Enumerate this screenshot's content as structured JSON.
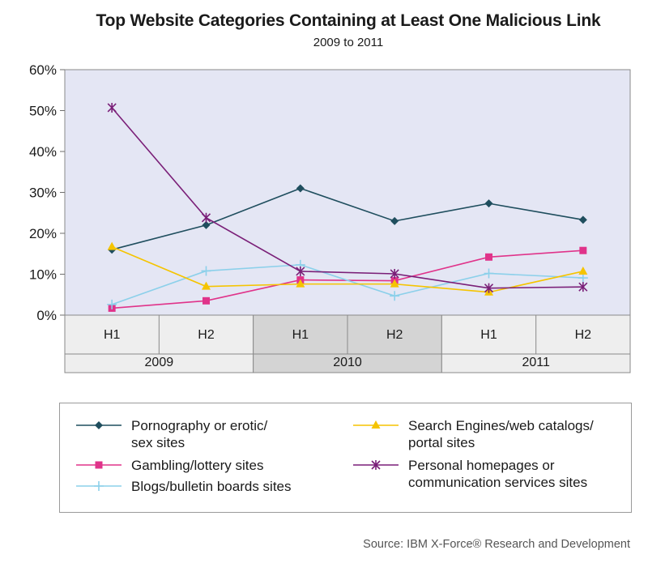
{
  "title": "Top Website Categories Containing at Least One Malicious Link",
  "subtitle": "2009 to 2011",
  "source": "Source: IBM X-Force® Research and Development",
  "chart_data": {
    "type": "line",
    "title": "Top Website Categories Containing at Least One Malicious Link",
    "subtitle": "2009 to 2011",
    "categories": [
      "H1",
      "H2",
      "H1",
      "H2",
      "H1",
      "H2"
    ],
    "groups": [
      "2009",
      "2010",
      "2011"
    ],
    "ylim": [
      0,
      60
    ],
    "yticks": [
      "0%",
      "10%",
      "20%",
      "30%",
      "40%",
      "50%",
      "60%"
    ],
    "grid": false,
    "legend_position": "bottom",
    "series": [
      {
        "name": "Pornography or erotic/\nsex sites",
        "color": "#1f4e5e",
        "marker": "diamond",
        "values": [
          16,
          22,
          31,
          23,
          27.3,
          23.3
        ]
      },
      {
        "name": "Gambling/lottery sites",
        "color": "#e0338a",
        "marker": "square",
        "values": [
          1.7,
          3.5,
          8.6,
          8.4,
          14.2,
          15.8
        ]
      },
      {
        "name": "Blogs/bulletin boards sites",
        "color": "#8cd0ea",
        "marker": "plus",
        "values": [
          2.6,
          10.8,
          12.3,
          4.7,
          10.2,
          9.1
        ]
      },
      {
        "name": "Search Engines/web catalogs/\nportal sites",
        "color": "#f5c400",
        "marker": "triangle",
        "values": [
          16.7,
          7,
          7.6,
          7.6,
          5.6,
          10.7
        ]
      },
      {
        "name": "Personal homepages or\ncommunication services sites",
        "color": "#7a1f78",
        "marker": "star",
        "values": [
          50.7,
          23.8,
          10.7,
          10.1,
          6.6,
          6.9
        ]
      }
    ]
  }
}
